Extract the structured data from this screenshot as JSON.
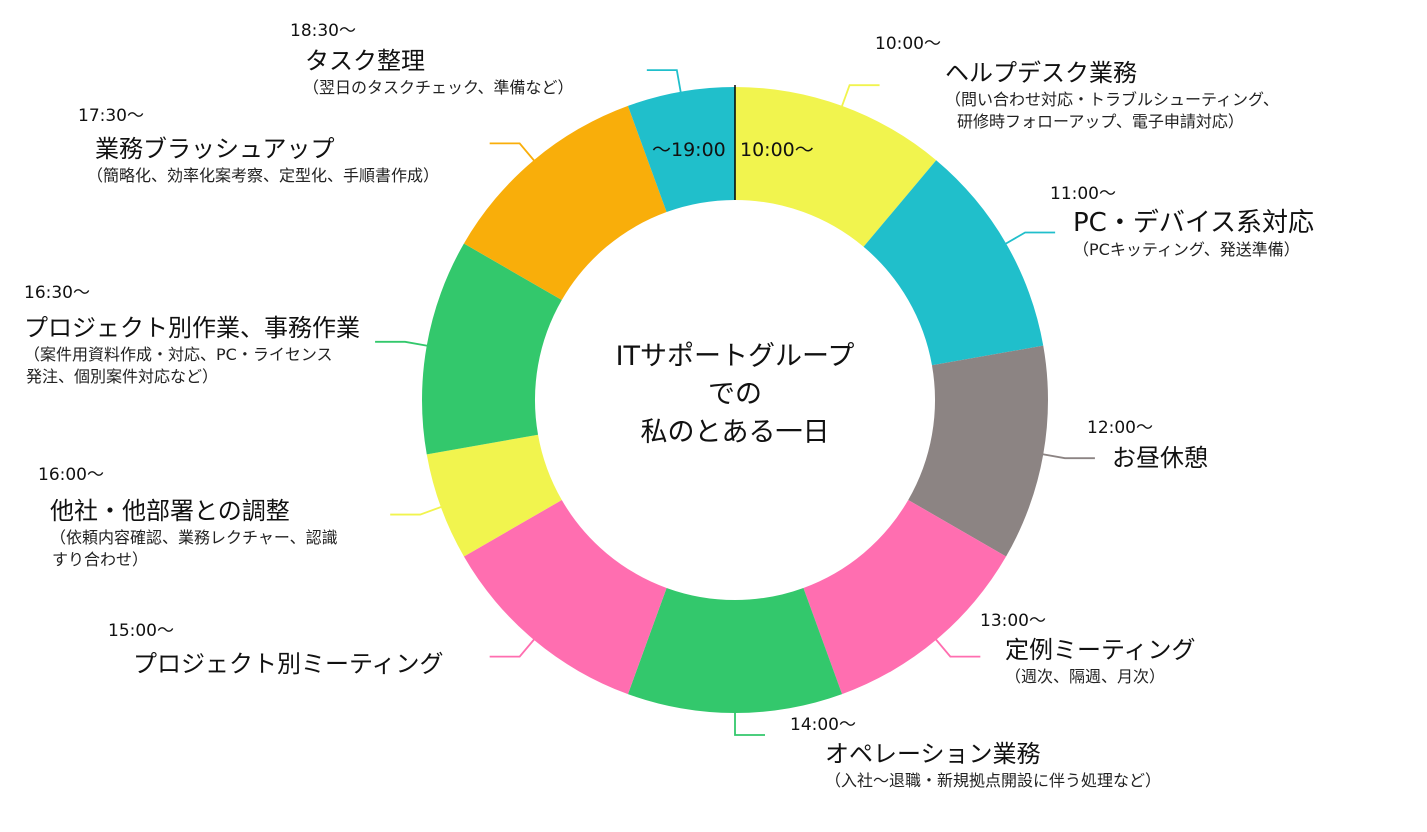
{
  "chart_data": {
    "type": "pie",
    "subtype": "donut",
    "title": "ITサポートグループ での 私のとある一日",
    "start_label": "10:00～",
    "end_label": "～19:00",
    "unit": "hours",
    "categories": [
      "ヘルプデスク業務",
      "PC・デバイス系対応",
      "お昼休憩",
      "定例ミーティング",
      "オペレーション業務",
      "プロジェクト別ミーティング",
      "他社・他部署との調整",
      "プロジェクト別作業、事務作業",
      "業務ブラッシュアップ",
      "タスク整理"
    ],
    "values": [
      1,
      1,
      1,
      1,
      1,
      1,
      0.5,
      1,
      1,
      0.5
    ],
    "colors": [
      "#F1F44E",
      "#20BFCB",
      "#8C8483",
      "#FF6EB0",
      "#33C86C",
      "#FF6EB0",
      "#F1F44E",
      "#33C86C",
      "#F9AE0A",
      "#20BFCB"
    ],
    "legend": "none (callout annotations)"
  },
  "center": {
    "line1": "ITサポートグループ",
    "line2": "での",
    "line3": "私のとある一日"
  },
  "ring_labels": {
    "start": "10:00～",
    "end": "～19:00"
  },
  "annotations": [
    {
      "time": "10:00～",
      "name": "ヘルプデスク業務",
      "detail1": "（問い合わせ対応・トラブルシューティング、",
      "detail2": "研修時フォローアップ、電子申請対応）"
    },
    {
      "time": "11:00～",
      "name": "PC・デバイス系対応",
      "detail1": "（PCキッティング、発送準備）",
      "detail2": ""
    },
    {
      "time": "12:00～",
      "name": "お昼休憩",
      "detail1": "",
      "detail2": ""
    },
    {
      "time": "13:00～",
      "name": "定例ミーティング",
      "detail1": "（週次、隔週、月次）",
      "detail2": ""
    },
    {
      "time": "14:00～",
      "name": "オペレーション業務",
      "detail1": "（入社～退職・新規拠点開設に伴う処理など）",
      "detail2": ""
    },
    {
      "time": "15:00～",
      "name": "プロジェクト別ミーティング",
      "detail1": "",
      "detail2": ""
    },
    {
      "time": "16:00～",
      "name": "他社・他部署との調整",
      "detail1": "（依頼内容確認、業務レクチャー、認識",
      "detail2": "すり合わせ）"
    },
    {
      "time": "16:30～",
      "name": "プロジェクト別作業、事務作業",
      "detail1": "（案件用資料作成・対応、PC・ライセンス",
      "detail2": "発注、個別案件対応など）"
    },
    {
      "time": "17:30～",
      "name": "業務ブラッシュアップ",
      "detail1": "（簡略化、効率化案考察、定型化、手順書作成）",
      "detail2": ""
    },
    {
      "time": "18:30～",
      "name": "タスク整理",
      "detail1": "（翌日のタスクチェック、準備など）",
      "detail2": ""
    }
  ]
}
